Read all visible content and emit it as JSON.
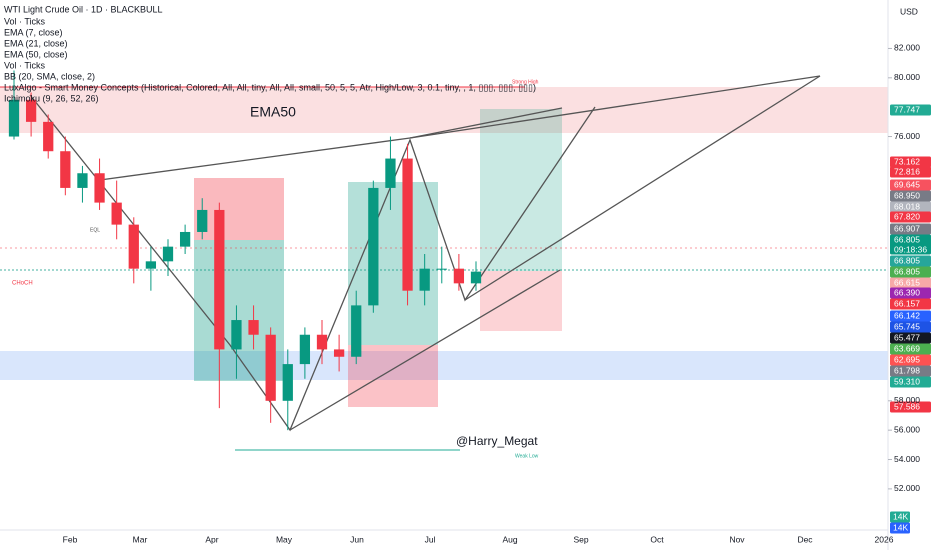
{
  "chart_data": {
    "type": "candlestick",
    "title": "WTI Light Crude Oil · 1D · BLACKBULL",
    "indicators": [
      "Vol · Ticks",
      "EMA (7, close)",
      "EMA (21, close)",
      "EMA (50, close)",
      "Vol · Ticks",
      "BB (20, SMA, close, 2)",
      "LuxAlgo - Smart Money Concepts (Historical, Colored, All, All, tiny, All, All, small, 50, 5, 5, Atr, High/Low, 3, 0.1, tiny, , 1, ▯▯▯, ▯▯▯, ▯▯▯)",
      "Ichimoku (9, 26, 52, 26)"
    ],
    "currency": "USD",
    "annotations": {
      "ema_label": "EMA50",
      "author": "@Harry_Megat",
      "strong_high": "Strong High",
      "weak_low": "Weak Low",
      "choch": "CHoCH",
      "eql": "EQL",
      "timer": "09:18:36"
    },
    "categories": [
      "Feb",
      "Mar",
      "Apr",
      "May",
      "Jun",
      "Jul",
      "Aug",
      "Sep",
      "Oct",
      "Nov",
      "Dec",
      "2026"
    ],
    "open": [
      76,
      78.5,
      77,
      75,
      72.5,
      73.5,
      71.5,
      70,
      67,
      67.5,
      68.5,
      69.5,
      71,
      61.5,
      63.5,
      62.5,
      58,
      60.5,
      62.5,
      61.5,
      61,
      64.5,
      72.5,
      74.5,
      65.5,
      67,
      67,
      66
    ],
    "high": [
      80.5,
      79,
      77.5,
      76,
      74,
      74.5,
      73,
      70.5,
      68.5,
      69,
      70,
      71.8,
      71.5,
      64.5,
      64.5,
      63,
      61.5,
      63,
      63.5,
      62.5,
      65.5,
      73,
      76,
      75.5,
      68,
      68.5,
      68,
      67.5
    ],
    "low": [
      75.8,
      76,
      74.5,
      72,
      71.5,
      71,
      69,
      66,
      65.5,
      66.5,
      68,
      69,
      57.5,
      59.5,
      61.5,
      56.5,
      56,
      59.5,
      60.5,
      60,
      60.5,
      64,
      71,
      64.5,
      64.5,
      66,
      65.5,
      65.5
    ],
    "close": [
      78.5,
      77,
      75,
      72.5,
      73.5,
      71.5,
      70,
      67,
      67.5,
      68.5,
      69.5,
      71,
      61.5,
      63.5,
      62.5,
      58,
      60.5,
      62.5,
      61.5,
      61,
      64.5,
      72.5,
      74.5,
      65.5,
      67,
      67,
      66,
      66.8
    ],
    "up_color": "#089981",
    "down_color": "#f23645",
    "ylim": [
      49.2,
      85.3
    ],
    "yticks": [
      {
        "value": 82,
        "label": "82.000"
      },
      {
        "value": 80,
        "label": "80.000"
      },
      {
        "value": 76,
        "label": "76.000"
      },
      {
        "value": 58,
        "label": "58.000"
      },
      {
        "value": 56,
        "label": "56.000"
      },
      {
        "value": 54,
        "label": "54.000"
      },
      {
        "value": 52,
        "label": "52.000"
      }
    ],
    "price_tags": [
      {
        "value": 77.747,
        "color": "#22ab94"
      },
      {
        "value": 73.162,
        "color": "#f23645"
      },
      {
        "value": 72.816,
        "color": "#f23645"
      },
      {
        "value": 69.645,
        "color": "#f7525f"
      },
      {
        "value": 68.95,
        "label": "68.950",
        "color": "#787b86"
      },
      {
        "value": 68.018,
        "color": "#b2b5be"
      },
      {
        "value": 67.82,
        "label": "67.820",
        "color": "#f23645"
      },
      {
        "value": 66.907,
        "color": "#787b86"
      },
      {
        "value": 66.805,
        "color": "#089981"
      },
      {
        "value": 66.805,
        "color": "#26a69a"
      },
      {
        "value": 66.805,
        "color": "#4caf50"
      },
      {
        "value": 66.615,
        "color": "#f7a9a8"
      },
      {
        "value": 66.39,
        "label": "66.390",
        "color": "#9c27b0"
      },
      {
        "value": 66.157,
        "color": "#f23645"
      },
      {
        "value": 66.142,
        "color": "#2962ff"
      },
      {
        "value": 65.745,
        "color": "#1e53e5"
      },
      {
        "value": 65.477,
        "color": "#131722"
      },
      {
        "value": 63.669,
        "color": "#4caf50"
      },
      {
        "value": 62.695,
        "color": "#ff5252"
      },
      {
        "value": 61.798,
        "color": "#787b86"
      },
      {
        "value": 59.31,
        "label": "59.310",
        "color": "#22ab94"
      },
      {
        "value": 57.586,
        "color": "#f23645"
      }
    ],
    "volume_tags": [
      {
        "label": "14K",
        "color": "#22ab94"
      },
      {
        "label": "14K",
        "color": "#2962ff"
      }
    ]
  }
}
